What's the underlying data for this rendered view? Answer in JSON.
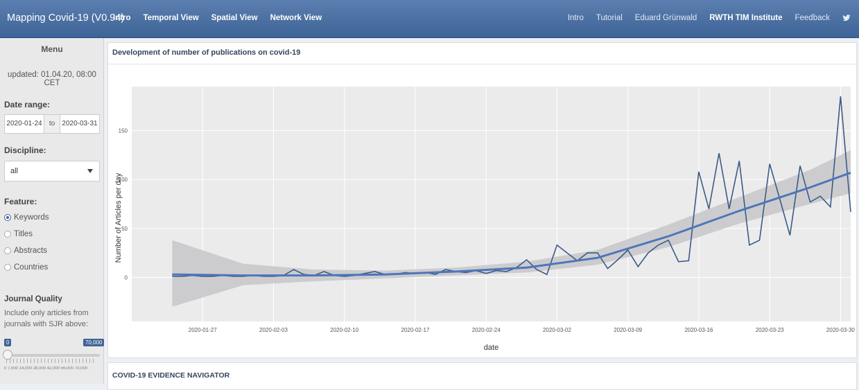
{
  "navbar": {
    "brand": "Mapping Covid-19 (V0.94)",
    "left_items": [
      "Intro",
      "Temporal View",
      "Spatial View",
      "Network View"
    ],
    "right_items": [
      "Intro",
      "Tutorial",
      "Eduard Grünwald",
      "RWTH TIM Institute",
      "Feedback"
    ],
    "social_icon": "twitter-icon"
  },
  "sidebar": {
    "title": "Menu",
    "updated": "updated: 01.04.20, 08:00 CET",
    "date_range_label": "Date range:",
    "date_start": "2020-01-24",
    "date_sep": "to",
    "date_end": "2020-03-31",
    "discipline_label": "Discipline:",
    "discipline_value": "all",
    "feature_label": "Feature:",
    "features": [
      "Keywords",
      "Titles",
      "Abstracts",
      "Countries"
    ],
    "feature_selected": 0,
    "journal_label": "Journal Quality",
    "journal_desc": "Include only articles from journals with SJR above:",
    "slider_min": "0",
    "slider_max": "70,000",
    "slider_scale": "0   7,000   14,000   28,000   42,000   56,000   70,000"
  },
  "panel": {
    "title": "Development of number of publications on covid-19"
  },
  "panel2": {
    "title": "COVID-19 EVIDENCE NAVIGATOR"
  },
  "chart_data": {
    "type": "line",
    "xlabel": "date",
    "ylabel": "Number of Articles per day",
    "ylim": [
      -45,
      195
    ],
    "xlim": [
      "2020-01-20",
      "2020-03-31"
    ],
    "xticks": [
      "2020-01-27",
      "2020-02-03",
      "2020-02-10",
      "2020-02-17",
      "2020-02-24",
      "2020-03-02",
      "2020-03-09",
      "2020-03-16",
      "2020-03-23",
      "2020-03-30"
    ],
    "yticks": [
      0,
      50,
      100,
      150
    ],
    "grid": true,
    "colors": {
      "line": "#3b5a86",
      "smooth": "#4e76b8",
      "band": "#c9c9cc",
      "background": "#ebebeb"
    },
    "series": [
      {
        "x": [
          "2020-01-24",
          "2020-01-25",
          "2020-01-26",
          "2020-01-27",
          "2020-01-28",
          "2020-01-29",
          "2020-01-30",
          "2020-01-31",
          "2020-02-01",
          "2020-02-02",
          "2020-02-03",
          "2020-02-04",
          "2020-02-05",
          "2020-02-06",
          "2020-02-07",
          "2020-02-08",
          "2020-02-09",
          "2020-02-10",
          "2020-02-11",
          "2020-02-12",
          "2020-02-13",
          "2020-02-14",
          "2020-02-15",
          "2020-02-16",
          "2020-02-17",
          "2020-02-18",
          "2020-02-19",
          "2020-02-20",
          "2020-02-21",
          "2020-02-22",
          "2020-02-23",
          "2020-02-24",
          "2020-02-25",
          "2020-02-26",
          "2020-02-27",
          "2020-02-28",
          "2020-02-29",
          "2020-03-01",
          "2020-03-02",
          "2020-03-03",
          "2020-03-04",
          "2020-03-05",
          "2020-03-06",
          "2020-03-07",
          "2020-03-08",
          "2020-03-09",
          "2020-03-10",
          "2020-03-11",
          "2020-03-12",
          "2020-03-13",
          "2020-03-14",
          "2020-03-15",
          "2020-03-16",
          "2020-03-17",
          "2020-03-18",
          "2020-03-19",
          "2020-03-20",
          "2020-03-21",
          "2020-03-22",
          "2020-03-23",
          "2020-03-24",
          "2020-03-25",
          "2020-03-26",
          "2020-03-27",
          "2020-03-28",
          "2020-03-29",
          "2020-03-30",
          "2020-03-31"
        ],
        "values": [
          1,
          1,
          2,
          1,
          1,
          2,
          1,
          1,
          2,
          1,
          1,
          2,
          8,
          3,
          2,
          6,
          2,
          1,
          2,
          4,
          6,
          3,
          3,
          5,
          4,
          5,
          3,
          8,
          6,
          5,
          7,
          4,
          7,
          6,
          10,
          18,
          8,
          3,
          33,
          25,
          17,
          25,
          25,
          9,
          18,
          28,
          11,
          25,
          33,
          38,
          16,
          17,
          108,
          70,
          127,
          70,
          119,
          33,
          38,
          116,
          80,
          43,
          114,
          77,
          83,
          72,
          185,
          67
        ]
      }
    ],
    "smooth": {
      "x": [
        "2020-01-24",
        "2020-01-31",
        "2020-02-07",
        "2020-02-14",
        "2020-02-21",
        "2020-02-28",
        "2020-03-06",
        "2020-03-13",
        "2020-03-20",
        "2020-03-27",
        "2020-03-31"
      ],
      "values": [
        3,
        2,
        2,
        3,
        6,
        10,
        20,
        42,
        68,
        92,
        107
      ],
      "lower": [
        -30,
        -8,
        -4,
        -1,
        2,
        5,
        13,
        31,
        55,
        75,
        86
      ],
      "upper": [
        38,
        14,
        8,
        7,
        10,
        16,
        28,
        54,
        82,
        110,
        130
      ]
    }
  }
}
